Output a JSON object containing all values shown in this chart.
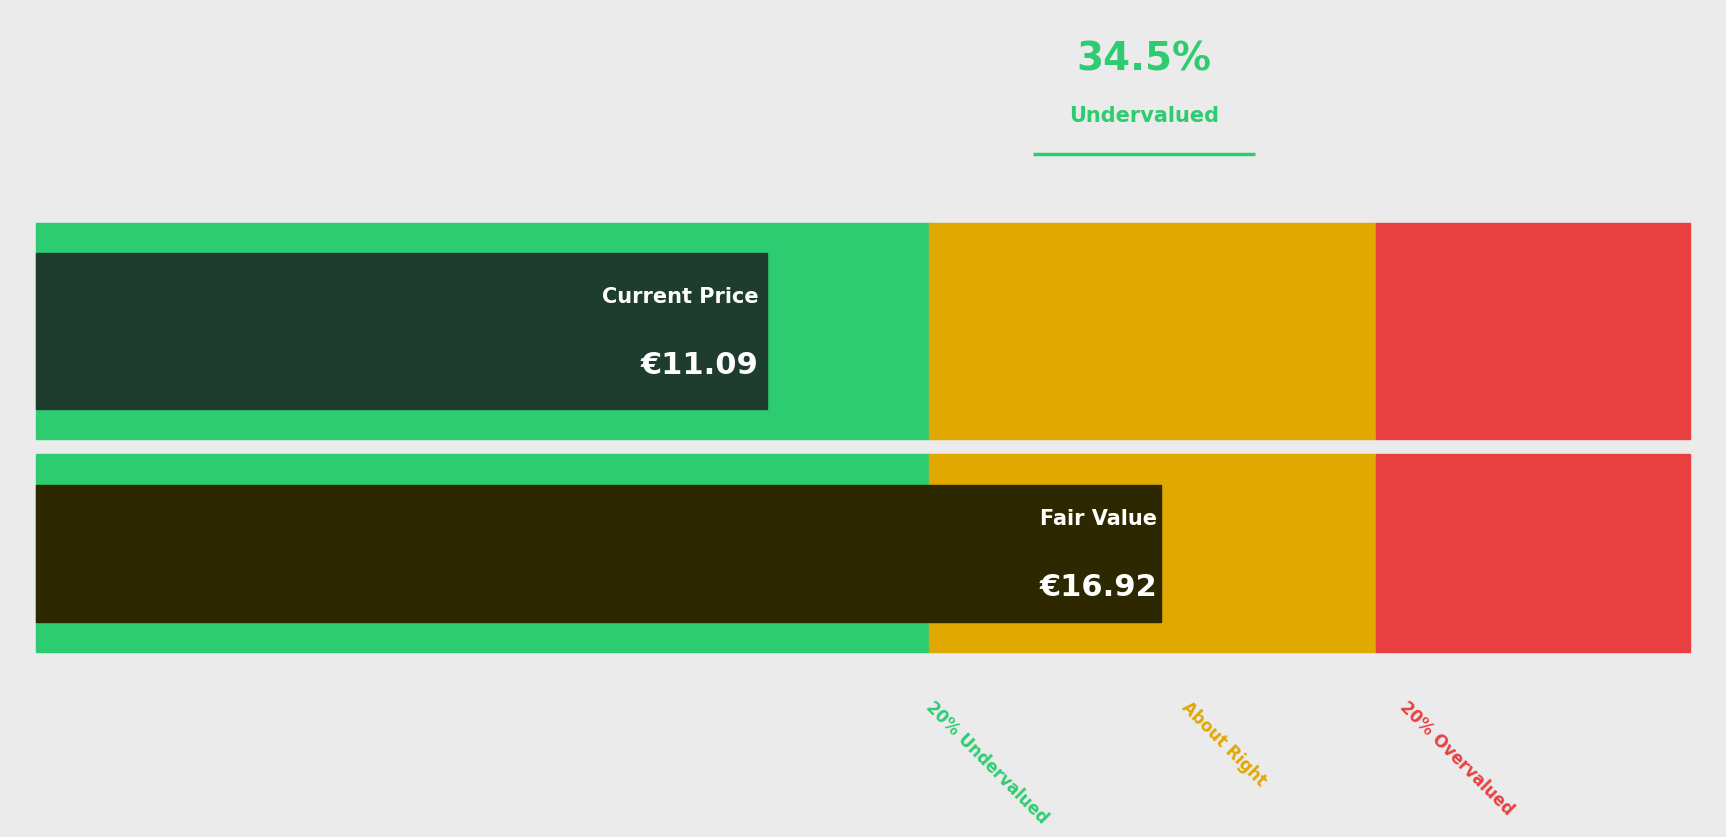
{
  "current_price": 11.09,
  "fair_value": 16.92,
  "undervalued_pct": 34.5,
  "label_undervalued": "Undervalued",
  "label_current_price": "Current Price",
  "label_fair_value": "Fair Value",
  "current_price_str": "€11.09",
  "fair_value_str": "€16.92",
  "pct_str": "34.5%",
  "background_color": "#ebebeb",
  "green_light": "#2ecc71",
  "green_dark": "#1a5c3a",
  "amber": "#e0a800",
  "amber_dark": "#c49000",
  "red": "#e84040",
  "text_green": "#2ecc71",
  "text_amber": "#e0a800",
  "text_red": "#e84040",
  "label_20_undervalued": "20% Undervalued",
  "label_about_right": "About Right",
  "label_20_overvalued": "20% Overvalued",
  "dark_box_color": "#1e3d2e",
  "fair_dark_box_color": "#2d2800"
}
